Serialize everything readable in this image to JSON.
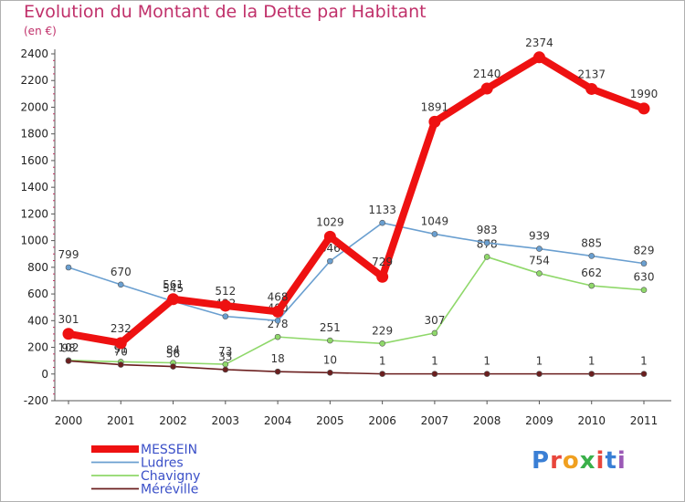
{
  "title": "Evolution du Montant de la Dette par Habitant",
  "unit": "(en €)",
  "logo": {
    "text": "Proxiti",
    "colors": [
      "#3a7fd5",
      "#e8463c",
      "#f0a020",
      "#3ab04a",
      "#e8463c",
      "#3a7fd5",
      "#9b59b6"
    ]
  },
  "chart_data": {
    "type": "line",
    "x": [
      "2000",
      "2001",
      "2002",
      "2003",
      "2004",
      "2005",
      "2006",
      "2007",
      "2008",
      "2009",
      "2010",
      "2011"
    ],
    "ylim": [
      -200,
      2400
    ],
    "yticks": [
      -200,
      0,
      200,
      400,
      600,
      800,
      1000,
      1200,
      1400,
      1600,
      1800,
      2000,
      2200,
      2400
    ],
    "grid": false,
    "legend": "bottom-left",
    "series": [
      {
        "name": "Chavigny",
        "color": "#8fd86a",
        "values": [
          102,
          91,
          84,
          73,
          278,
          251,
          229,
          307,
          878,
          754,
          662,
          630
        ]
      },
      {
        "name": "Méréville",
        "color": "#6b1f1f",
        "values": [
          98,
          70,
          56,
          33,
          18,
          10,
          1,
          1,
          1,
          1,
          1,
          1
        ]
      },
      {
        "name": "Ludres",
        "color": "#6a9fd0",
        "values": [
          799,
          670,
          545,
          432,
          400,
          846,
          1133,
          1049,
          983,
          939,
          885,
          829
        ]
      },
      {
        "name": "MESSEIN",
        "color": "#ee1111",
        "values": [
          301,
          232,
          561,
          512,
          468,
          1029,
          729,
          1891,
          2140,
          2374,
          2137,
          1990
        ]
      }
    ],
    "legend_order": [
      "MESSEIN",
      "Ludres",
      "Chavigny",
      "Méréville"
    ]
  }
}
